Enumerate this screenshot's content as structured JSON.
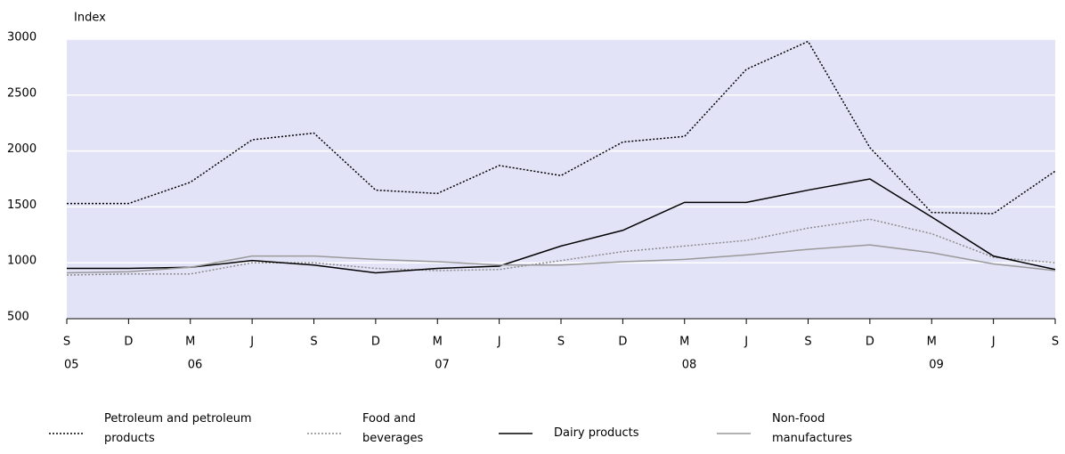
{
  "chart_data": {
    "type": "line",
    "y_label": "Index",
    "categories": [
      "S",
      "D",
      "M",
      "J",
      "S",
      "D",
      "M",
      "J",
      "S",
      "D",
      "M",
      "J",
      "S",
      "D",
      "M",
      "J",
      "S"
    ],
    "year_labels": [
      "05",
      null,
      "06",
      null,
      null,
      null,
      "07",
      null,
      null,
      null,
      "08",
      null,
      null,
      null,
      "09",
      null,
      null
    ],
    "ylim": [
      500,
      3000
    ],
    "yticks": [
      500,
      1000,
      1500,
      2000,
      2500,
      3000
    ],
    "grid": true,
    "series": [
      {
        "name": "Petroleum and petroleum products",
        "color": "#000000",
        "dash": "dotted",
        "values": [
          1530,
          1530,
          1720,
          2100,
          2160,
          1650,
          1620,
          1870,
          1780,
          2080,
          2130,
          2730,
          2980,
          2030,
          1450,
          1440,
          1820
        ]
      },
      {
        "name": "Food and beverages",
        "color": "#8c8c8c",
        "dash": "dotted",
        "values": [
          890,
          900,
          900,
          1000,
          1000,
          950,
          930,
          940,
          1020,
          1100,
          1150,
          1200,
          1310,
          1390,
          1260,
          1050,
          1000
        ]
      },
      {
        "name": "Dairy products",
        "color": "#000000",
        "dash": "solid",
        "values": [
          950,
          950,
          960,
          1020,
          980,
          910,
          950,
          970,
          1150,
          1290,
          1540,
          1540,
          1650,
          1750,
          1410,
          1060,
          940
        ]
      },
      {
        "name": "Non-food manufactures",
        "color": "#999999",
        "dash": "solid",
        "values": [
          910,
          920,
          960,
          1060,
          1060,
          1030,
          1010,
          980,
          980,
          1010,
          1030,
          1070,
          1120,
          1160,
          1090,
          990,
          930
        ]
      }
    ]
  }
}
